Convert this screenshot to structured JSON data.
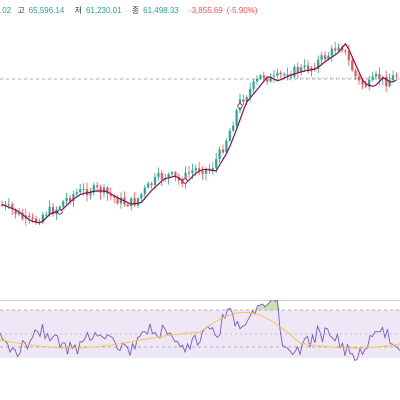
{
  "ohlc": {
    "open_fragment": ".02",
    "high_label": "고",
    "high_value": "65,596.14",
    "low_label": "저",
    "low_value": "61,230.01",
    "close_label": "종",
    "close_value": "61,498.33",
    "change": "-3,855.69",
    "change_pct": "(-5.90%)"
  },
  "colors": {
    "up": "#26a69a",
    "down": "#ef5350",
    "ma_line": "#880e4f",
    "rsi_line": "#7e57c2",
    "rsi_ma": "#f5c542",
    "rsi_band": "#ede7f6",
    "overbought_fill": "#8bc34a",
    "price_line": "#999999"
  }
}
